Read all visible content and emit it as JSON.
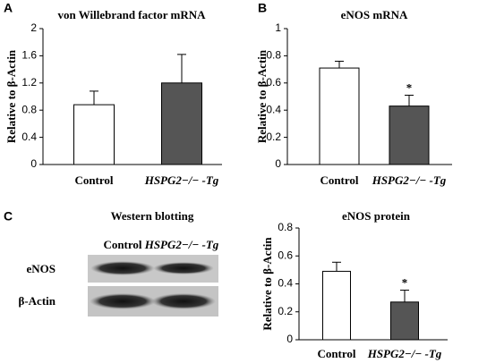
{
  "chart_data": [
    {
      "type": "bar",
      "panel": "A",
      "title": "von Willebrand factor mRNA",
      "y_label": "Relative to β-Actin",
      "categories": [
        "Control",
        "HSPG2−/− -Tg"
      ],
      "values": [
        0.88,
        1.2
      ],
      "errors": [
        0.2,
        0.42
      ],
      "colors": [
        "#ffffff",
        "#555555"
      ],
      "annotations": [
        null,
        null
      ],
      "ylim": [
        0,
        2
      ],
      "yticks": [
        0,
        0.4,
        0.8,
        1.2,
        1.6,
        2
      ]
    },
    {
      "type": "bar",
      "panel": "B",
      "title": "eNOS mRNA",
      "y_label": "Relative to β-Actin",
      "categories": [
        "Control",
        "HSPG2−/− -Tg"
      ],
      "values": [
        0.71,
        0.43
      ],
      "errors": [
        0.05,
        0.08
      ],
      "colors": [
        "#ffffff",
        "#555555"
      ],
      "annotations": [
        null,
        "*"
      ],
      "ylim": [
        0,
        1
      ],
      "yticks": [
        0,
        0.2,
        0.4,
        0.6,
        0.8,
        1
      ]
    },
    {
      "type": "bar",
      "panel": "C",
      "title": "eNOS protein",
      "y_label": "Relative to β-Actin",
      "categories": [
        "Control",
        "HSPG2−/− -Tg"
      ],
      "values": [
        0.49,
        0.27
      ],
      "errors": [
        0.065,
        0.085
      ],
      "colors": [
        "#ffffff",
        "#555555"
      ],
      "annotations": [
        null,
        "*"
      ],
      "ylim": [
        0,
        0.8
      ],
      "yticks": [
        0,
        0.2,
        0.4,
        0.6,
        0.8
      ]
    }
  ],
  "western_blot": {
    "title": "Western blotting",
    "columns": [
      "Control",
      "HSPG2−/− -Tg"
    ],
    "rows": [
      "eNOS",
      "β-Actin"
    ]
  }
}
